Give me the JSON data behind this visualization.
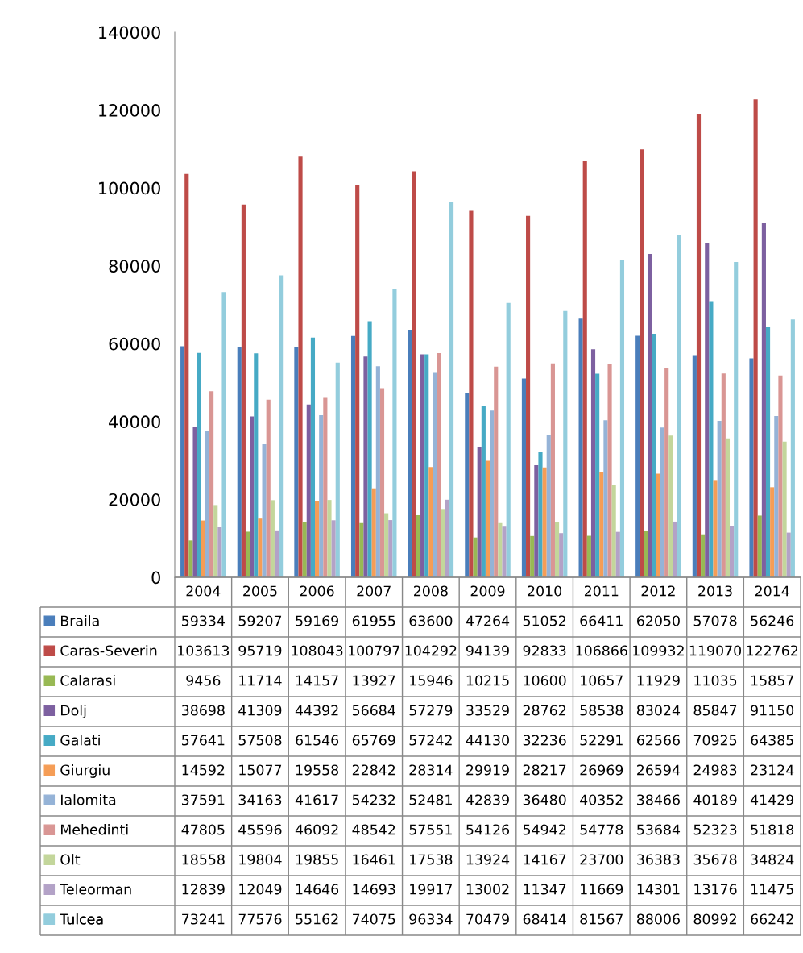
{
  "chart_data": {
    "type": "bar",
    "categories": [
      "2004",
      "2005",
      "2006",
      "2007",
      "2008",
      "2009",
      "2010",
      "2011",
      "2012",
      "2013",
      "2014"
    ],
    "ylim": [
      0,
      140000
    ],
    "yticks": [
      0,
      20000,
      40000,
      60000,
      80000,
      100000,
      120000,
      140000
    ],
    "grid": false,
    "legend": "bottom left",
    "data_labels": true,
    "series": [
      {
        "name": "Braila",
        "color": "#4a7ebb",
        "values": [
          59334,
          59207,
          59169,
          61955,
          63600,
          47264,
          51052,
          66411,
          62050,
          57078,
          56246
        ]
      },
      {
        "name": "Caras-Severin",
        "color": "#be4b48",
        "values": [
          103613,
          95719,
          108043,
          100797,
          104292,
          94139,
          92833,
          106866,
          109932,
          119070,
          122762
        ]
      },
      {
        "name": "Calarasi",
        "color": "#98b954",
        "values": [
          9456,
          11714,
          14157,
          13927,
          15946,
          10215,
          10600,
          10657,
          11929,
          11035,
          15857
        ]
      },
      {
        "name": "Dolj",
        "color": "#7d60a0",
        "values": [
          38698,
          41309,
          44392,
          56684,
          57279,
          33529,
          28762,
          58538,
          83024,
          85847,
          91150
        ]
      },
      {
        "name": "Galati",
        "color": "#46aac5",
        "values": [
          57641,
          57508,
          61546,
          65769,
          57242,
          44130,
          32236,
          52291,
          62566,
          70925,
          64385
        ]
      },
      {
        "name": "Giurgiu",
        "color": "#f59d56",
        "values": [
          14592,
          15077,
          19558,
          22842,
          28314,
          29919,
          28217,
          26969,
          26594,
          24983,
          23124
        ]
      },
      {
        "name": "Ialomita",
        "color": "#95b3d7",
        "values": [
          37591,
          34163,
          41617,
          54232,
          52481,
          42839,
          36480,
          40352,
          38466,
          40189,
          41429
        ]
      },
      {
        "name": "Mehedinti",
        "color": "#d99694",
        "values": [
          47805,
          45596,
          46092,
          48542,
          57551,
          54126,
          54942,
          54778,
          53684,
          52323,
          51818
        ]
      },
      {
        "name": "Olt",
        "color": "#c3d69b",
        "values": [
          18558,
          19804,
          19855,
          16461,
          17538,
          13924,
          14167,
          23700,
          36383,
          35678,
          34824
        ]
      },
      {
        "name": "Teleorman",
        "color": "#b3a2c7",
        "values": [
          12839,
          12049,
          14646,
          14693,
          19917,
          13002,
          11347,
          11669,
          14301,
          13176,
          11475
        ]
      },
      {
        "name": "Tulcea",
        "color": "#93cddd",
        "values": [
          73241,
          77576,
          55162,
          74075,
          96334,
          70479,
          68414,
          81567,
          88006,
          80992,
          66242
        ]
      }
    ]
  }
}
